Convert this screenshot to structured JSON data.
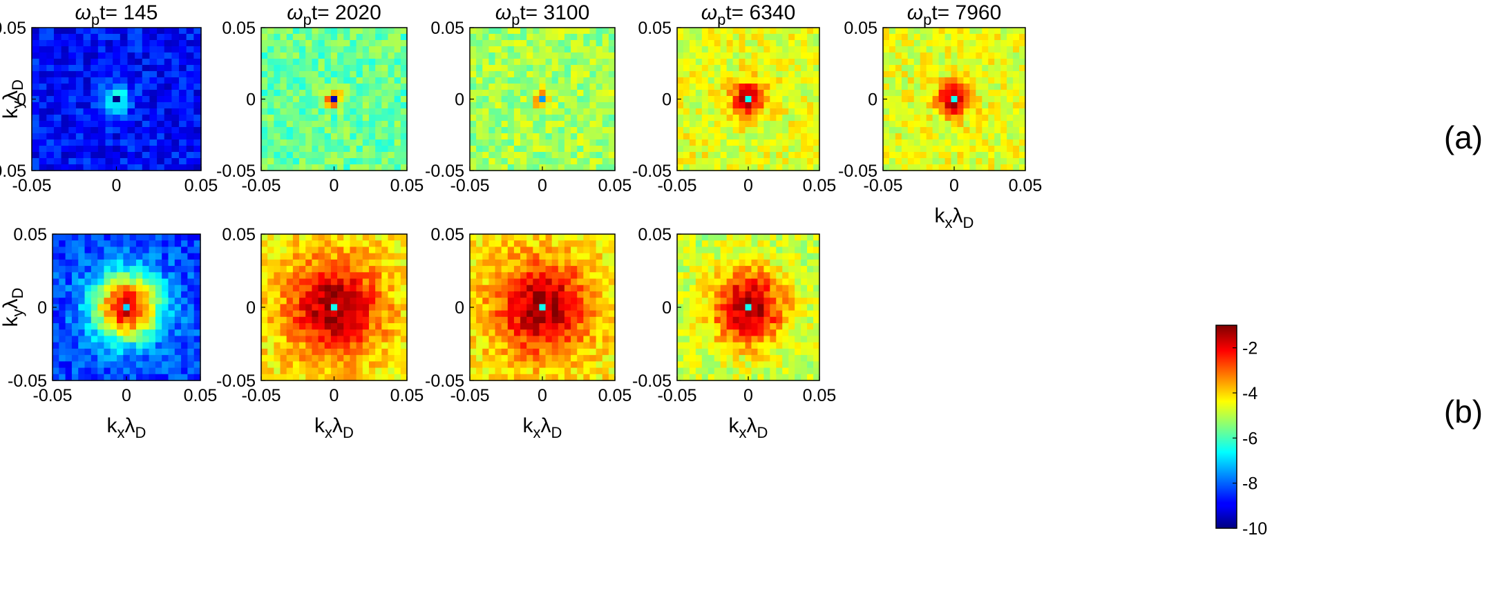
{
  "chart_data": {
    "type": "heatmap",
    "xlim": [
      -0.05,
      0.05
    ],
    "ylim": [
      -0.05,
      0.05
    ],
    "xticks": [
      "-0.05",
      "0",
      "0.05"
    ],
    "yticks": [
      "0.05",
      "0",
      "-0.05"
    ],
    "grid_cells": 23,
    "x_axis_label": {
      "main": "k",
      "sub1": "x",
      "mid": "λ",
      "sub2": "D"
    },
    "y_axis_label": {
      "main": "k",
      "sub1": "y",
      "mid": "λ",
      "sub2": "D"
    },
    "title_prefix": {
      "omega": "ω",
      "sub": "p",
      "rest": "t= "
    },
    "colorbar": {
      "colormap": "jet",
      "range": [
        -10,
        -1
      ],
      "ticks": [
        "-2",
        "-4",
        "-6",
        "-8",
        "-10"
      ]
    },
    "row_labels": [
      "(a)",
      "(b)"
    ],
    "panels": [
      {
        "row": "a",
        "title_value": "145",
        "background": -8.8,
        "peak": -5.5,
        "width": 0.006,
        "center": -10.0
      },
      {
        "row": "a",
        "title_value": "2020",
        "background": -5.7,
        "peak": -2.0,
        "width": 0.004,
        "center": -9.5
      },
      {
        "row": "a",
        "title_value": "3100",
        "background": -5.2,
        "peak": -1.8,
        "width": 0.004,
        "center": -7.5
      },
      {
        "row": "a",
        "title_value": "6340",
        "background": -4.6,
        "peak": -1.2,
        "width": 0.008,
        "center": -6.5
      },
      {
        "row": "a",
        "title_value": "7960",
        "background": -4.6,
        "peak": -1.2,
        "width": 0.008,
        "center": -6.5
      },
      {
        "row": "b",
        "title_value": "145",
        "background": -8.3,
        "peak": -1.8,
        "width": 0.016,
        "center": -7.0
      },
      {
        "row": "b",
        "title_value": "2020",
        "background": -4.3,
        "peak": -1.2,
        "width": 0.022,
        "center": -6.5
      },
      {
        "row": "b",
        "title_value": "3100",
        "background": -4.3,
        "peak": -1.2,
        "width": 0.022,
        "center": -6.5
      },
      {
        "row": "b",
        "title_value": "6340",
        "background": -4.9,
        "peak": -1.3,
        "width": 0.018,
        "center": -6.5
      }
    ]
  }
}
